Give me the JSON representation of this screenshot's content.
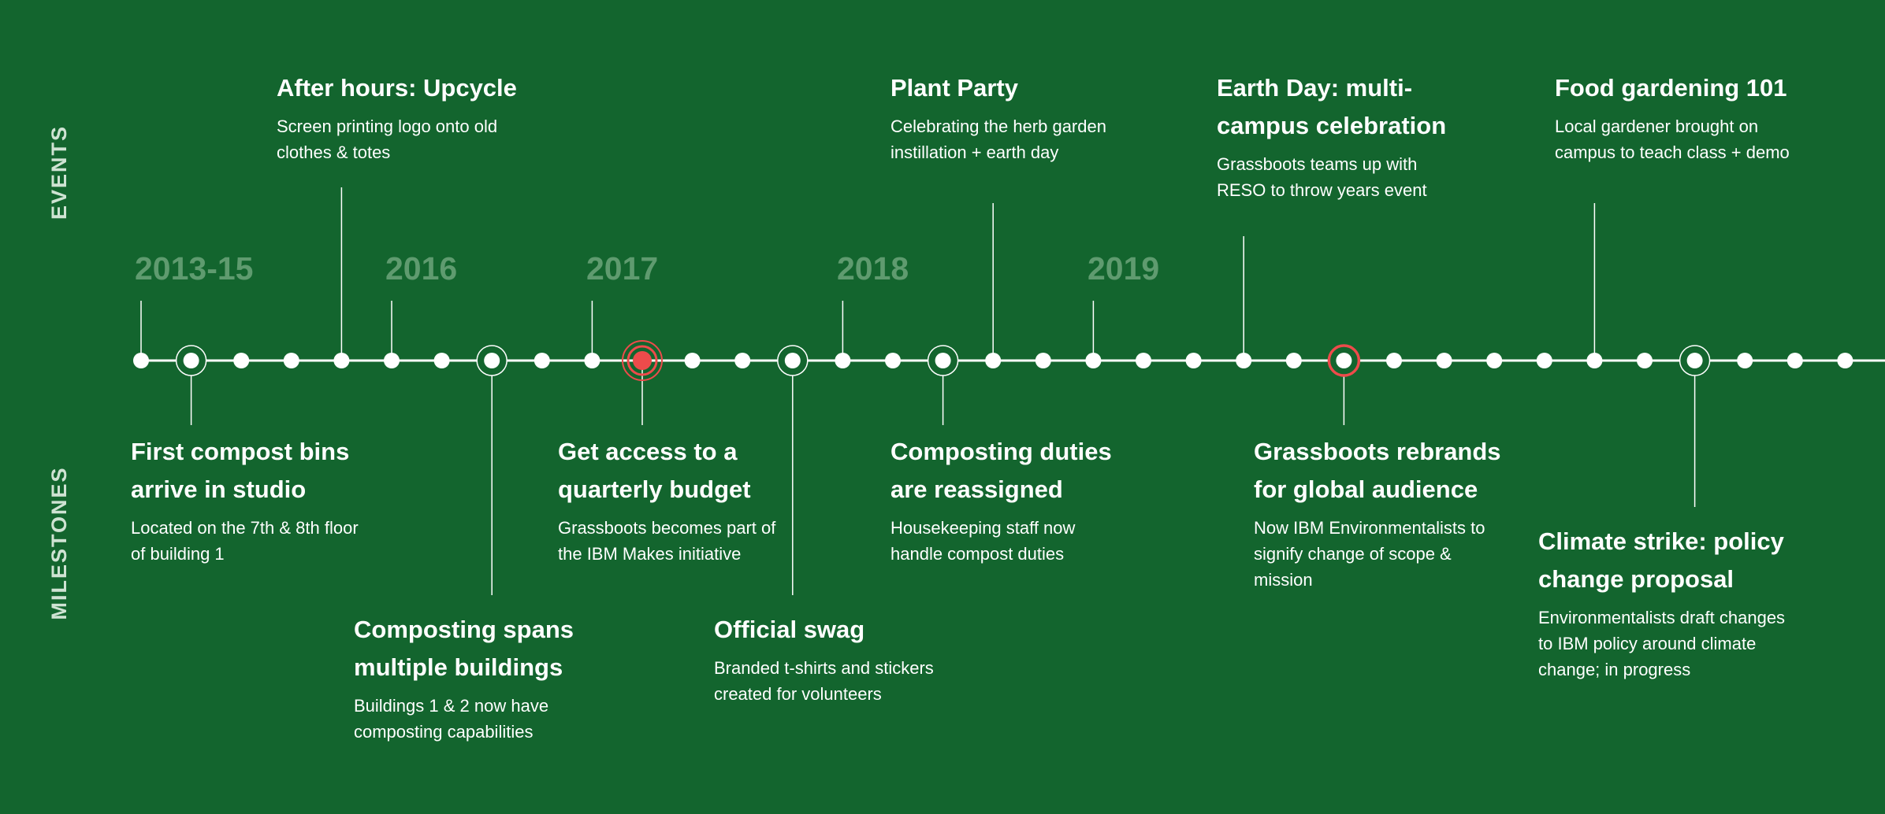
{
  "labels": {
    "events": "EVENTS",
    "milestones": "MILESTONES"
  },
  "colors": {
    "background": "#13652e",
    "line": "#ffffff",
    "year": "#5f9b6f",
    "side_label": "#cfe3d3",
    "highlight": "#ee4b4b"
  },
  "years": [
    "2013-15",
    "2016",
    "2017",
    "2018",
    "2019"
  ],
  "events": [
    {
      "title": "After hours: Upcycle",
      "desc": "Screen printing logo onto old clothes & totes"
    },
    {
      "title": "Plant Party",
      "desc": "Celebrating the herb garden instillation + earth day"
    },
    {
      "title": "Earth Day: multi-campus celebration",
      "desc": "Grassboots teams up with RESO to throw years event"
    },
    {
      "title": "Food gardening 101",
      "desc": "Local gardener brought on campus to teach class + demo"
    }
  ],
  "milestones": [
    {
      "title": "First compost bins arrive in studio",
      "desc": "Located on the 7th & 8th floor of building 1"
    },
    {
      "title": "Composting spans multiple buildings",
      "desc": "Buildings 1 & 2 now have composting capabilities"
    },
    {
      "title": "Get access to a quarterly budget",
      "desc": "Grassboots becomes part of the IBM Makes initiative"
    },
    {
      "title": "Official swag",
      "desc": "Branded t-shirts and stickers created for volunteers"
    },
    {
      "title": "Composting duties are reassigned",
      "desc": "Housekeeping staff now handle compost duties"
    },
    {
      "title": "Grassboots rebrands for global audience",
      "desc": "Now IBM Environmentalists to signify change of scope & mission"
    },
    {
      "title": "Climate strike: policy change proposal",
      "desc": "Environmentalists draft changes to IBM policy around climate change; in progress"
    }
  ]
}
